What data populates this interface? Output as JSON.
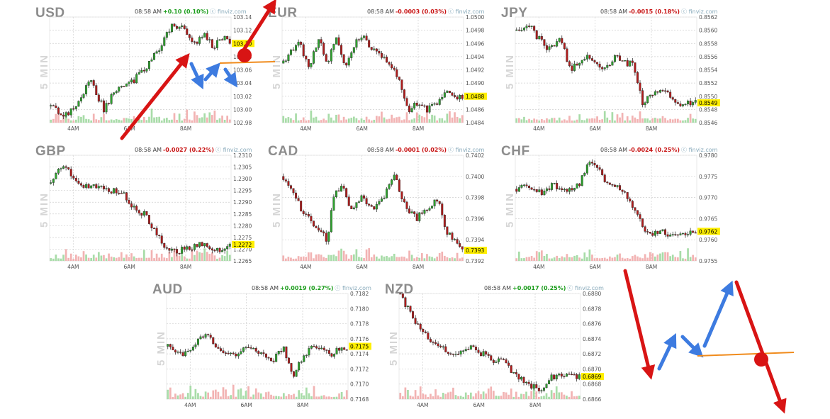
{
  "page": {
    "source": "finviz.com",
    "timeframe_label": "5 MIN"
  },
  "chart_data": [
    {
      "type": "candlestick",
      "symbol": "USD",
      "time": "08:58 AM",
      "change": "+0.10 (0.10%)",
      "direction": "up",
      "source": "finviz.com",
      "timeframe": "5 MIN",
      "ylim": [
        102.98,
        103.14
      ],
      "ticks": [
        "103.14",
        "103.12",
        "103.10",
        "103.08",
        "103.06",
        "103.04",
        "103.02",
        "103.00",
        "102.98"
      ],
      "xticks": [
        "4AM",
        "6AM",
        "8AM"
      ],
      "last": "103.10",
      "path": [
        [
          0,
          103.005
        ],
        [
          0.1,
          102.99
        ],
        [
          0.18,
          103.02
        ],
        [
          0.22,
          103.045
        ],
        [
          0.3,
          103.0
        ],
        [
          0.36,
          103.03
        ],
        [
          0.45,
          103.04
        ],
        [
          0.55,
          103.07
        ],
        [
          0.62,
          103.1
        ],
        [
          0.68,
          103.13
        ],
        [
          0.75,
          103.12
        ],
        [
          0.8,
          103.1
        ],
        [
          0.85,
          103.115
        ],
        [
          0.9,
          103.095
        ],
        [
          0.95,
          103.11
        ],
        [
          1,
          103.1
        ]
      ]
    },
    {
      "type": "candlestick",
      "symbol": "EUR",
      "time": "08:58 AM",
      "change": "-0.0003 (0.03%)",
      "direction": "down",
      "source": "finviz.com",
      "timeframe": "5 MIN",
      "ylim": [
        1.0484,
        1.05
      ],
      "ticks": [
        "1.0500",
        "1.0498",
        "1.0496",
        "1.0494",
        "1.0492",
        "1.0490",
        "1.0488",
        "1.0486",
        "1.0484"
      ],
      "xticks": [
        "4AM",
        "6AM",
        "8AM"
      ],
      "last": "1.0488",
      "path": [
        [
          0,
          1.0493
        ],
        [
          0.05,
          1.0495
        ],
        [
          0.1,
          1.0496
        ],
        [
          0.15,
          1.0492
        ],
        [
          0.2,
          1.0497
        ],
        [
          0.25,
          1.0493
        ],
        [
          0.3,
          1.0497
        ],
        [
          0.35,
          1.0492
        ],
        [
          0.4,
          1.0496
        ],
        [
          0.45,
          1.0497
        ],
        [
          0.5,
          1.0495
        ],
        [
          0.55,
          1.0494
        ],
        [
          0.6,
          1.0493
        ],
        [
          0.65,
          1.049
        ],
        [
          0.7,
          1.0486
        ],
        [
          0.75,
          1.0487
        ],
        [
          0.8,
          1.0486
        ],
        [
          0.85,
          1.0487
        ],
        [
          0.9,
          1.0489
        ],
        [
          0.95,
          1.0488
        ],
        [
          1,
          1.0488
        ]
      ]
    },
    {
      "type": "candlestick",
      "symbol": "JPY",
      "time": "08:58 AM",
      "change": "-0.0015 (0.18%)",
      "direction": "down",
      "source": "finviz.com",
      "timeframe": "5 MIN",
      "ylim": [
        0.8546,
        0.8562
      ],
      "ticks": [
        "0.8562",
        "0.8560",
        "0.8558",
        "0.8556",
        "0.8554",
        "0.8552",
        "0.8550",
        "0.8548",
        "0.8546"
      ],
      "xticks": [
        "4AM",
        "6AM",
        "8AM"
      ],
      "last": "0.8549",
      "path": [
        [
          0,
          0.856
        ],
        [
          0.07,
          0.8561
        ],
        [
          0.12,
          0.8559
        ],
        [
          0.18,
          0.8557
        ],
        [
          0.25,
          0.8559
        ],
        [
          0.3,
          0.8554
        ],
        [
          0.35,
          0.8555
        ],
        [
          0.4,
          0.8556
        ],
        [
          0.45,
          0.8555
        ],
        [
          0.5,
          0.8554
        ],
        [
          0.55,
          0.8556
        ],
        [
          0.6,
          0.8555
        ],
        [
          0.65,
          0.8555
        ],
        [
          0.7,
          0.8549
        ],
        [
          0.75,
          0.855
        ],
        [
          0.8,
          0.8551
        ],
        [
          0.85,
          0.855
        ],
        [
          0.9,
          0.8549
        ],
        [
          0.95,
          0.8549
        ],
        [
          1,
          0.8549
        ]
      ]
    },
    {
      "type": "candlestick",
      "symbol": "GBP",
      "time": "08:58 AM",
      "change": "-0.0027 (0.22%)",
      "direction": "down",
      "source": "finviz.com",
      "timeframe": "5 MIN",
      "ylim": [
        1.2265,
        1.231
      ],
      "ticks": [
        "1.2310",
        "1.2305",
        "1.2300",
        "1.2295",
        "1.2290",
        "1.2285",
        "1.2280",
        "1.2275",
        "1.2270",
        "1.2265"
      ],
      "xticks": [
        "4AM",
        "6AM",
        "8AM"
      ],
      "last": "1.2272",
      "path": [
        [
          0,
          1.2298
        ],
        [
          0.06,
          1.2305
        ],
        [
          0.12,
          1.2302
        ],
        [
          0.18,
          1.2296
        ],
        [
          0.25,
          1.2297
        ],
        [
          0.32,
          1.2295
        ],
        [
          0.4,
          1.2294
        ],
        [
          0.46,
          1.2288
        ],
        [
          0.52,
          1.2285
        ],
        [
          0.58,
          1.2278
        ],
        [
          0.63,
          1.2271
        ],
        [
          0.7,
          1.2269
        ],
        [
          0.78,
          1.2271
        ],
        [
          0.85,
          1.2272
        ],
        [
          0.92,
          1.2269
        ],
        [
          1,
          1.2272
        ]
      ]
    },
    {
      "type": "candlestick",
      "symbol": "CAD",
      "time": "08:58 AM",
      "change": "-0.0001 (0.02%)",
      "direction": "down",
      "source": "finviz.com",
      "timeframe": "5 MIN",
      "ylim": [
        0.7392,
        0.7402
      ],
      "ticks": [
        "0.7402",
        "0.7400",
        "0.7398",
        "0.7396",
        "0.7394",
        "0.7392"
      ],
      "xticks": [
        "4AM",
        "6AM",
        "8AM"
      ],
      "last": "0.7393",
      "path": [
        [
          0,
          0.74
        ],
        [
          0.05,
          0.7399
        ],
        [
          0.1,
          0.7397
        ],
        [
          0.15,
          0.7396
        ],
        [
          0.2,
          0.7395
        ],
        [
          0.25,
          0.7394
        ],
        [
          0.28,
          0.7398
        ],
        [
          0.33,
          0.7399
        ],
        [
          0.38,
          0.7397
        ],
        [
          0.43,
          0.7398
        ],
        [
          0.5,
          0.7397
        ],
        [
          0.56,
          0.7398
        ],
        [
          0.62,
          0.74
        ],
        [
          0.68,
          0.7397
        ],
        [
          0.74,
          0.7396
        ],
        [
          0.8,
          0.7397
        ],
        [
          0.86,
          0.7398
        ],
        [
          0.9,
          0.7395
        ],
        [
          0.95,
          0.7394
        ],
        [
          1,
          0.7393
        ]
      ]
    },
    {
      "type": "candlestick",
      "symbol": "CHF",
      "time": "08:58 AM",
      "change": "-0.0024 (0.25%)",
      "direction": "down",
      "source": "finviz.com",
      "timeframe": "5 MIN",
      "ylim": [
        0.9755,
        0.978
      ],
      "ticks": [
        "0.9780",
        "0.9775",
        "0.9770",
        "0.9765",
        "0.9760",
        "0.9755"
      ],
      "xticks": [
        "4AM",
        "6AM",
        "8AM"
      ],
      "last": "0.9762",
      "path": [
        [
          0,
          0.9772
        ],
        [
          0.08,
          0.9773
        ],
        [
          0.14,
          0.9771
        ],
        [
          0.2,
          0.9773
        ],
        [
          0.28,
          0.9772
        ],
        [
          0.35,
          0.9773
        ],
        [
          0.4,
          0.9778
        ],
        [
          0.45,
          0.9777
        ],
        [
          0.5,
          0.9774
        ],
        [
          0.56,
          0.9773
        ],
        [
          0.62,
          0.977
        ],
        [
          0.68,
          0.9766
        ],
        [
          0.72,
          0.9761
        ],
        [
          0.8,
          0.9762
        ],
        [
          0.88,
          0.9761
        ],
        [
          0.95,
          0.9762
        ],
        [
          1,
          0.9762
        ]
      ]
    },
    {
      "type": "candlestick",
      "symbol": "AUD",
      "time": "08:58 AM",
      "change": "+0.0019 (0.27%)",
      "direction": "up",
      "source": "finviz.com",
      "timeframe": "5 MIN",
      "ylim": [
        0.7168,
        0.7182
      ],
      "ticks": [
        "0.7182",
        "0.7180",
        "0.7178",
        "0.7176",
        "0.7174",
        "0.7172",
        "0.7170",
        "0.7168"
      ],
      "xticks": [
        "4AM",
        "6AM",
        "8AM"
      ],
      "last": "0.7175",
      "path": [
        [
          0,
          0.7175
        ],
        [
          0.08,
          0.7174
        ],
        [
          0.15,
          0.7175
        ],
        [
          0.22,
          0.7177
        ],
        [
          0.3,
          0.7174
        ],
        [
          0.38,
          0.7174
        ],
        [
          0.45,
          0.7175
        ],
        [
          0.52,
          0.7174
        ],
        [
          0.58,
          0.7173
        ],
        [
          0.64,
          0.7175
        ],
        [
          0.7,
          0.7171
        ],
        [
          0.76,
          0.7174
        ],
        [
          0.82,
          0.7175
        ],
        [
          0.9,
          0.7174
        ],
        [
          1,
          0.7175
        ]
      ]
    },
    {
      "type": "candlestick",
      "symbol": "NZD",
      "time": "08:58 AM",
      "change": "+0.0017 (0.25%)",
      "direction": "up",
      "source": "finviz.com",
      "timeframe": "5 MIN",
      "ylim": [
        0.6866,
        0.688
      ],
      "ticks": [
        "0.6880",
        "0.6878",
        "0.6876",
        "0.6874",
        "0.6872",
        "0.6870",
        "0.6868",
        "0.6866"
      ],
      "xticks": [
        "4AM",
        "6AM",
        "8AM"
      ],
      "last": "0.6869",
      "path": [
        [
          0,
          0.688
        ],
        [
          0.05,
          0.6878
        ],
        [
          0.1,
          0.6876
        ],
        [
          0.16,
          0.6874
        ],
        [
          0.22,
          0.6873
        ],
        [
          0.3,
          0.6872
        ],
        [
          0.38,
          0.6873
        ],
        [
          0.46,
          0.6872
        ],
        [
          0.52,
          0.6871
        ],
        [
          0.58,
          0.6871
        ],
        [
          0.65,
          0.6869
        ],
        [
          0.72,
          0.6868
        ],
        [
          0.78,
          0.6867
        ],
        [
          0.84,
          0.6869
        ],
        [
          0.92,
          0.6869
        ],
        [
          1,
          0.6869
        ]
      ]
    }
  ]
}
